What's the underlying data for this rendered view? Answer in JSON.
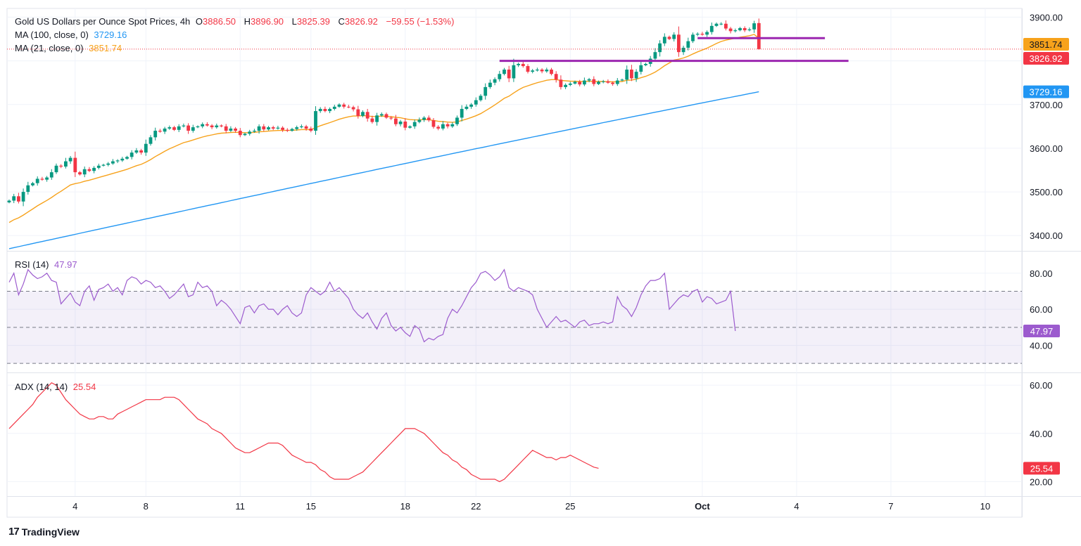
{
  "header": {
    "symbol_title": "Gold US Dollars per Ounce Spot Prices, 4h",
    "ohlc": [
      {
        "k": "O",
        "v": "3886.50"
      },
      {
        "k": "H",
        "v": "3896.90"
      },
      {
        "k": "L",
        "v": "3825.39"
      },
      {
        "k": "C",
        "v": "3826.92"
      }
    ],
    "change": "−59.55 (−1.53%)",
    "ma100_label": "MA (100, close, 0)",
    "ma100_value": "3729.16",
    "ma21_label": "MA (21, close, 0)",
    "ma21_value": "3851.74"
  },
  "rsi_header": {
    "label": "RSI (14)",
    "value": "47.97"
  },
  "adx_header": {
    "label": "ADX (14, 14)",
    "value": "25.54"
  },
  "branding": {
    "logo_mark": "17",
    "name": "TradingView"
  },
  "colors": {
    "bull": "#089981",
    "bear": "#f23645",
    "ma21": "#f7a21b",
    "ma100": "#2196f3",
    "rsi": "#9c5bce",
    "adx": "#f23645",
    "support": "#9c27b0",
    "price_line": "#f23645"
  },
  "chart_data": [
    {
      "type": "candlestick",
      "title": "Gold US Dollars per Ounce Spot Prices, 4h",
      "ylim": [
        3365,
        3920
      ],
      "y_ticks": [
        "3900.00",
        "3800.00",
        "3700.00",
        "3600.00",
        "3500.00",
        "3400.00"
      ],
      "y_tick_values": [
        3900,
        3800,
        3700,
        3600,
        3500,
        3400
      ],
      "x_ticks": [
        {
          "label": "4",
          "bar": 14
        },
        {
          "label": "8",
          "bar": 29
        },
        {
          "label": "11",
          "bar": 49
        },
        {
          "label": "15",
          "bar": 64
        },
        {
          "label": "18",
          "bar": 84
        },
        {
          "label": "22",
          "bar": 99
        },
        {
          "label": "25",
          "bar": 119
        },
        {
          "label": "Oct",
          "bar": 147,
          "bold": true
        },
        {
          "label": "4",
          "bar": 167
        },
        {
          "label": "7",
          "bar": 187
        },
        {
          "label": "10",
          "bar": 207
        }
      ],
      "closes": [
        3480,
        3490,
        3478,
        3500,
        3515,
        3520,
        3530,
        3528,
        3533,
        3545,
        3560,
        3558,
        3570,
        3578,
        3545,
        3540,
        3552,
        3548,
        3555,
        3560,
        3562,
        3565,
        3570,
        3572,
        3576,
        3580,
        3590,
        3595,
        3590,
        3610,
        3625,
        3640,
        3638,
        3645,
        3648,
        3642,
        3650,
        3652,
        3640,
        3648,
        3650,
        3655,
        3652,
        3648,
        3652,
        3650,
        3640,
        3645,
        3640,
        3630,
        3633,
        3638,
        3640,
        3650,
        3643,
        3648,
        3645,
        3647,
        3642,
        3640,
        3644,
        3648,
        3650,
        3645,
        3640,
        3685,
        3690,
        3685,
        3690,
        3695,
        3700,
        3695,
        3694,
        3689,
        3674,
        3683,
        3668,
        3660,
        3675,
        3678,
        3670,
        3668,
        3655,
        3661,
        3647,
        3650,
        3660,
        3665,
        3670,
        3664,
        3649,
        3645,
        3655,
        3650,
        3655,
        3670,
        3690,
        3695,
        3700,
        3710,
        3720,
        3740,
        3750,
        3758,
        3770,
        3780,
        3760,
        3790,
        3793,
        3788,
        3775,
        3778,
        3780,
        3776,
        3780,
        3770,
        3757,
        3740,
        3745,
        3748,
        3752,
        3746,
        3755,
        3758,
        3747,
        3752,
        3753,
        3750,
        3747,
        3755,
        3757,
        3780,
        3760,
        3775,
        3790,
        3793,
        3805,
        3820,
        3840,
        3855,
        3850,
        3860,
        3820,
        3830,
        3845,
        3860,
        3862,
        3860,
        3866,
        3880,
        3885,
        3885,
        3874,
        3868,
        3870,
        3875,
        3870,
        3872,
        3886,
        3826.92
      ],
      "series": [
        {
          "name": "MA (100, close, 0)",
          "last": 3729.16,
          "start": 3370,
          "end": 3729.16
        },
        {
          "name": "MA (21, close, 0)",
          "last": 3851.74
        }
      ],
      "support_levels": [
        {
          "price": 3800,
          "from_bar": 104,
          "to_bar": 178
        },
        {
          "price": 3852,
          "from_bar": 146,
          "to_bar": 173
        }
      ],
      "last_price": 3826.92,
      "price_labels": [
        "3851.74",
        "3826.92",
        "3729.16"
      ]
    },
    {
      "type": "line",
      "name": "RSI (14)",
      "ylim": [
        25,
        92
      ],
      "y_ticks": [
        "80.00",
        "60.00",
        "40.00"
      ],
      "y_tick_values": [
        80,
        60,
        40
      ],
      "bands": [
        70,
        50,
        30
      ],
      "values": [
        75,
        80,
        68,
        74,
        82,
        79,
        77,
        78,
        80,
        76,
        75,
        63,
        66,
        69,
        64,
        62,
        70,
        73,
        65,
        71,
        72,
        74,
        70,
        72,
        68,
        76,
        78,
        77,
        74,
        76,
        75,
        72,
        73,
        70,
        66,
        68,
        71,
        74,
        67,
        68,
        75,
        72,
        73,
        70,
        62,
        65,
        63,
        60,
        56,
        52,
        61,
        62,
        58,
        62,
        63,
        60,
        60,
        57,
        60,
        62,
        58,
        56,
        58,
        68,
        72,
        70,
        68,
        70,
        75,
        70,
        72,
        69,
        66,
        60,
        57,
        55,
        58,
        53,
        49,
        55,
        58,
        51,
        48,
        50,
        47,
        45,
        51,
        49,
        42,
        44,
        43,
        45,
        46,
        55,
        60,
        58,
        62,
        67,
        72,
        75,
        80,
        81,
        79,
        76,
        78,
        82,
        72,
        70,
        72,
        71,
        70,
        68,
        60,
        55,
        50,
        53,
        56,
        53,
        54,
        52,
        50,
        53,
        54,
        51,
        52,
        52,
        53,
        52,
        53,
        67,
        62,
        60,
        56,
        61,
        68,
        73,
        76,
        76,
        77,
        80,
        60,
        63,
        66,
        68,
        67,
        70,
        71,
        64,
        67,
        66,
        63,
        64,
        65,
        70,
        48
      ]
    },
    {
      "type": "line",
      "name": "ADX (14, 14)",
      "ylim": [
        14,
        65
      ],
      "y_ticks": [
        "60.00",
        "40.00",
        "20.00"
      ],
      "y_tick_values": [
        60,
        40,
        20
      ],
      "values": [
        42,
        44,
        46,
        48,
        50,
        52,
        55,
        57,
        59,
        61,
        60,
        57,
        54,
        52,
        50,
        48,
        47,
        46,
        46,
        47,
        47,
        46,
        46,
        48,
        49,
        50,
        51,
        52,
        53,
        54,
        54,
        54,
        54,
        55,
        55,
        55,
        54,
        52,
        50,
        48,
        46,
        45,
        44,
        42,
        41,
        40,
        38,
        36,
        34,
        33,
        32,
        32,
        33,
        34,
        35,
        36,
        36,
        36,
        35,
        33,
        31,
        30,
        29,
        28,
        28,
        27,
        25,
        24,
        22,
        21,
        21,
        21,
        21,
        22,
        23,
        24,
        26,
        28,
        30,
        32,
        34,
        36,
        38,
        40,
        42,
        42,
        42,
        41,
        40,
        38,
        36,
        34,
        32,
        31,
        29,
        28,
        26,
        25,
        23,
        22,
        21,
        21,
        21,
        21,
        20,
        21,
        23,
        25,
        27,
        29,
        31,
        33,
        32,
        31,
        30,
        30,
        29,
        30,
        30,
        31,
        30,
        29,
        28,
        27,
        26,
        25.54
      ]
    }
  ]
}
